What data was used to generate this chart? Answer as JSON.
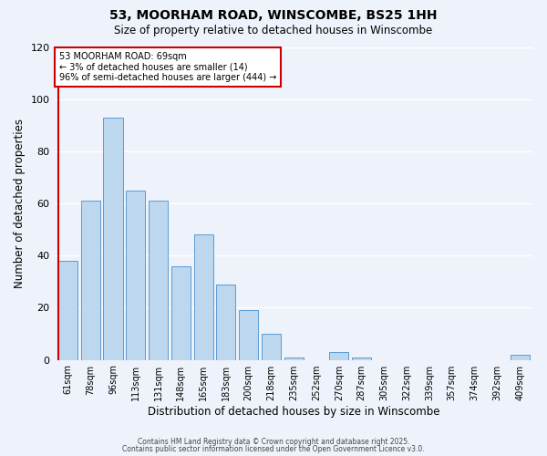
{
  "title": "53, MOORHAM ROAD, WINSCOMBE, BS25 1HH",
  "subtitle": "Size of property relative to detached houses in Winscombe",
  "xlabel": "Distribution of detached houses by size in Winscombe",
  "ylabel": "Number of detached properties",
  "categories": [
    "61sqm",
    "78sqm",
    "96sqm",
    "113sqm",
    "131sqm",
    "148sqm",
    "165sqm",
    "183sqm",
    "200sqm",
    "218sqm",
    "235sqm",
    "252sqm",
    "270sqm",
    "287sqm",
    "305sqm",
    "322sqm",
    "339sqm",
    "357sqm",
    "374sqm",
    "392sqm",
    "409sqm"
  ],
  "values": [
    38,
    61,
    93,
    65,
    61,
    36,
    48,
    29,
    19,
    10,
    1,
    0,
    3,
    1,
    0,
    0,
    0,
    0,
    0,
    0,
    2
  ],
  "bar_color": "#bdd7ee",
  "bar_edge_color": "#5b9bd5",
  "background_color": "#eef2fa",
  "grid_color": "#ffffff",
  "ylim": [
    0,
    120
  ],
  "yticks": [
    0,
    20,
    40,
    60,
    80,
    100,
    120
  ],
  "annotation_title": "53 MOORHAM ROAD: 69sqm",
  "annotation_line1": "← 3% of detached houses are smaller (14)",
  "annotation_line2": "96% of semi-detached houses are larger (444) →",
  "annotation_box_color": "#ffffff",
  "annotation_box_edge": "#cc0000",
  "red_line_color": "#cc0000",
  "footer1": "Contains HM Land Registry data © Crown copyright and database right 2025.",
  "footer2": "Contains public sector information licensed under the Open Government Licence v3.0."
}
